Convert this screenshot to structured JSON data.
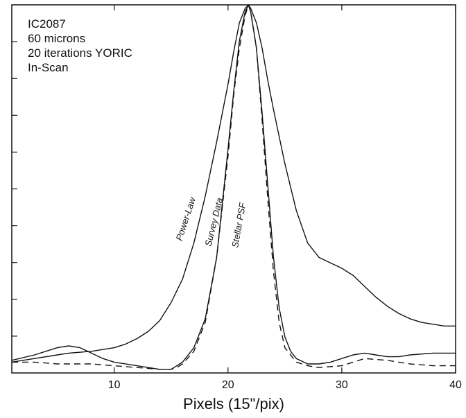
{
  "chart_data": {
    "type": "line",
    "title": "",
    "info_lines": [
      "IC2087",
      "60 microns",
      "20 iterations YORIC",
      "In-Scan"
    ],
    "xlabel": "Pixels (15\"/pix)",
    "ylabel": "",
    "xlim": [
      1,
      40
    ],
    "ylim": [
      -0.02,
      1.0
    ],
    "x_ticks": [
      10,
      20,
      30,
      40
    ],
    "x_tick_labels": [
      "10",
      "20",
      "30",
      "40"
    ],
    "y_tick_count": 10,
    "grid": false,
    "legend": "none",
    "series": [
      {
        "name": "Power-Law",
        "style": "solid",
        "x": [
          1,
          3,
          5,
          6,
          8,
          10,
          11,
          12,
          13,
          14,
          15,
          16,
          17,
          18,
          19,
          20,
          20.5,
          21,
          21.5,
          21.8,
          22,
          22.5,
          23,
          23.5,
          24,
          25,
          26,
          27,
          28,
          29,
          30,
          31,
          32,
          33,
          34,
          35,
          36,
          37,
          38,
          39,
          40
        ],
        "y": [
          0.01,
          0.02,
          0.03,
          0.035,
          0.04,
          0.05,
          0.06,
          0.075,
          0.095,
          0.125,
          0.175,
          0.24,
          0.34,
          0.47,
          0.62,
          0.78,
          0.87,
          0.95,
          0.99,
          1.0,
          0.99,
          0.95,
          0.88,
          0.79,
          0.71,
          0.56,
          0.43,
          0.34,
          0.3,
          0.285,
          0.27,
          0.25,
          0.22,
          0.19,
          0.165,
          0.145,
          0.13,
          0.12,
          0.115,
          0.11,
          0.11
        ]
      },
      {
        "name": "Survey Data",
        "style": "solid",
        "x": [
          1,
          3,
          5,
          6,
          7,
          8,
          9,
          10,
          12,
          13,
          14,
          15,
          16,
          17,
          18,
          19,
          20,
          20.5,
          21,
          21.5,
          21.8,
          22,
          22.5,
          23,
          23.5,
          24,
          24.5,
          25,
          25.5,
          26,
          27,
          28,
          29,
          30,
          31,
          32,
          33,
          34,
          35,
          36,
          38,
          40
        ],
        "y": [
          0.015,
          0.03,
          0.05,
          0.055,
          0.05,
          0.035,
          0.02,
          0.01,
          0.0,
          -0.005,
          -0.01,
          -0.01,
          0.01,
          0.05,
          0.13,
          0.3,
          0.6,
          0.76,
          0.9,
          0.98,
          1.0,
          0.98,
          0.88,
          0.7,
          0.5,
          0.3,
          0.16,
          0.08,
          0.04,
          0.02,
          0.005,
          0.005,
          0.01,
          0.02,
          0.03,
          0.035,
          0.03,
          0.025,
          0.025,
          0.03,
          0.035,
          0.035
        ]
      },
      {
        "name": "Stellar PSF",
        "style": "dashed",
        "x": [
          1,
          3,
          5,
          8,
          10,
          12,
          14,
          15,
          15.5,
          16,
          17,
          18,
          19,
          20,
          20.5,
          21,
          21.5,
          21.8,
          22,
          22.5,
          23,
          23.5,
          24,
          24.5,
          25,
          26,
          27,
          28,
          30,
          32,
          34,
          36,
          38,
          40
        ],
        "y": [
          0.01,
          0.01,
          0.005,
          0.005,
          0.0,
          -0.005,
          -0.01,
          -0.01,
          -0.005,
          0.005,
          0.04,
          0.12,
          0.3,
          0.58,
          0.75,
          0.88,
          0.97,
          1.0,
          0.98,
          0.88,
          0.68,
          0.46,
          0.26,
          0.12,
          0.05,
          0.01,
          0.0,
          -0.005,
          0.0,
          0.02,
          0.015,
          0.005,
          0.0,
          0.0
        ]
      }
    ]
  }
}
